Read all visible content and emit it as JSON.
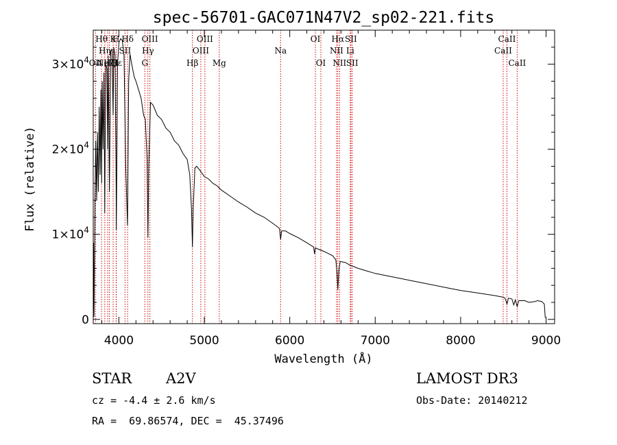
{
  "chart_data": {
    "type": "line",
    "title": "spec-56701-GAC071N47V2_sp02-221.fits",
    "xlabel": "Wavelength (Å)",
    "ylabel": "Flux (relative)",
    "xlim": [
      3700,
      9100
    ],
    "ylim": [
      -500,
      34000
    ],
    "x_ticks": [
      4000,
      5000,
      6000,
      7000,
      8000,
      9000
    ],
    "x_tick_labels": [
      "4000",
      "5000",
      "6000",
      "7000",
      "8000",
      "9000"
    ],
    "y_ticks": [
      0,
      10000,
      20000,
      30000
    ],
    "y_tick_labels": [
      {
        "mantissa": "0",
        "exp": ""
      },
      {
        "mantissa": "1×10",
        "exp": "4"
      },
      {
        "mantissa": "2×10",
        "exp": "4"
      },
      {
        "mantissa": "3×10",
        "exp": "4"
      }
    ],
    "series": [
      {
        "name": "spectrum",
        "points": [
          [
            3700,
            200
          ],
          [
            3705,
            9000
          ],
          [
            3710,
            300
          ],
          [
            3720,
            14000
          ],
          [
            3730,
            21000
          ],
          [
            3740,
            14000
          ],
          [
            3750,
            22000
          ],
          [
            3760,
            15000
          ],
          [
            3770,
            25000
          ],
          [
            3780,
            17000
          ],
          [
            3790,
            27000
          ],
          [
            3798,
            16000
          ],
          [
            3805,
            28000
          ],
          [
            3815,
            20000
          ],
          [
            3825,
            29000
          ],
          [
            3835,
            12500
          ],
          [
            3845,
            30000
          ],
          [
            3860,
            29500
          ],
          [
            3868,
            20000
          ],
          [
            3875,
            31000
          ],
          [
            3889,
            15000
          ],
          [
            3905,
            31500
          ],
          [
            3920,
            31800
          ],
          [
            3933,
            24000
          ],
          [
            3940,
            32000
          ],
          [
            3955,
            31000
          ],
          [
            3968,
            16000
          ],
          [
            3970,
            10500
          ],
          [
            3985,
            30000
          ],
          [
            4000,
            32500
          ],
          [
            4020,
            33000
          ],
          [
            4040,
            32800
          ],
          [
            4060,
            31000
          ],
          [
            4080,
            18000
          ],
          [
            4101,
            11000
          ],
          [
            4115,
            28000
          ],
          [
            4130,
            31200
          ],
          [
            4150,
            30000
          ],
          [
            4180,
            28500
          ],
          [
            4200,
            28000
          ],
          [
            4230,
            27000
          ],
          [
            4260,
            26000
          ],
          [
            4290,
            24000
          ],
          [
            4310,
            23500
          ],
          [
            4330,
            19000
          ],
          [
            4340,
            9600
          ],
          [
            4350,
            18000
          ],
          [
            4370,
            25500
          ],
          [
            4400,
            25200
          ],
          [
            4450,
            24000
          ],
          [
            4500,
            23500
          ],
          [
            4550,
            22500
          ],
          [
            4600,
            22000
          ],
          [
            4650,
            21000
          ],
          [
            4700,
            20500
          ],
          [
            4750,
            19500
          ],
          [
            4800,
            18800
          ],
          [
            4830,
            17000
          ],
          [
            4850,
            13000
          ],
          [
            4861,
            8500
          ],
          [
            4870,
            13000
          ],
          [
            4890,
            17800
          ],
          [
            4910,
            18000
          ],
          [
            4950,
            17500
          ],
          [
            5000,
            16800
          ],
          [
            5050,
            16500
          ],
          [
            5100,
            16000
          ],
          [
            5150,
            15700
          ],
          [
            5200,
            15200
          ],
          [
            5300,
            14500
          ],
          [
            5400,
            13800
          ],
          [
            5500,
            13200
          ],
          [
            5600,
            12500
          ],
          [
            5700,
            12000
          ],
          [
            5800,
            11300
          ],
          [
            5880,
            10700
          ],
          [
            5893,
            9400
          ],
          [
            5905,
            10400
          ],
          [
            5950,
            10400
          ],
          [
            6000,
            10100
          ],
          [
            6100,
            9600
          ],
          [
            6200,
            9000
          ],
          [
            6280,
            8500
          ],
          [
            6290,
            7700
          ],
          [
            6300,
            8400
          ],
          [
            6400,
            8000
          ],
          [
            6500,
            7500
          ],
          [
            6540,
            7000
          ],
          [
            6555,
            5200
          ],
          [
            6563,
            3500
          ],
          [
            6575,
            5800
          ],
          [
            6590,
            6800
          ],
          [
            6650,
            6700
          ],
          [
            6700,
            6400
          ],
          [
            6800,
            6000
          ],
          [
            6900,
            5700
          ],
          [
            7000,
            5400
          ],
          [
            7200,
            5000
          ],
          [
            7400,
            4600
          ],
          [
            7600,
            4200
          ],
          [
            7800,
            3800
          ],
          [
            8000,
            3400
          ],
          [
            8200,
            3100
          ],
          [
            8400,
            2800
          ],
          [
            8500,
            2600
          ],
          [
            8520,
            2500
          ],
          [
            8542,
            1800
          ],
          [
            8560,
            2500
          ],
          [
            8600,
            2400
          ],
          [
            8622,
            1700
          ],
          [
            8640,
            2300
          ],
          [
            8662,
            1500
          ],
          [
            8680,
            2200
          ],
          [
            8750,
            2200
          ],
          [
            8800,
            2000
          ],
          [
            8870,
            2100
          ],
          [
            8900,
            2200
          ],
          [
            8950,
            2100
          ],
          [
            8980,
            1800
          ],
          [
            8990,
            200
          ]
        ]
      }
    ],
    "line_markers": [
      {
        "x": 3727,
        "label": "OII",
        "row": 2
      },
      {
        "x": 3797,
        "label": "Hθ",
        "row": 0
      },
      {
        "x": 3835,
        "label": "Hη",
        "row": 1
      },
      {
        "x": 3869,
        "label": "NeIII",
        "row": 2
      },
      {
        "x": 3889,
        "label": "Hζ",
        "row": 2
      },
      {
        "x": 3933,
        "label": "K",
        "row": 0
      },
      {
        "x": 3968,
        "label": "H",
        "row": 0
      },
      {
        "x": 3970,
        "label": "Hε",
        "row": 2
      },
      {
        "x": 4072,
        "label": "SII",
        "row": 1
      },
      {
        "x": 4102,
        "label": "Hδ",
        "row": 0
      },
      {
        "x": 4304,
        "label": "G",
        "row": 2
      },
      {
        "x": 4340,
        "label": "Hγ",
        "row": 1
      },
      {
        "x": 4363,
        "label": "OIII",
        "row": 0
      },
      {
        "x": 4861,
        "label": "Hβ",
        "row": 2
      },
      {
        "x": 4959,
        "label": "OIII",
        "row": 1
      },
      {
        "x": 5007,
        "label": "OIII",
        "row": 0
      },
      {
        "x": 5175,
        "label": "Mg",
        "row": 2
      },
      {
        "x": 5893,
        "label": "Na",
        "row": 1
      },
      {
        "x": 6300,
        "label": "OI",
        "row": 0
      },
      {
        "x": 6364,
        "label": "OI",
        "row": 2
      },
      {
        "x": 6548,
        "label": "NII",
        "row": 1
      },
      {
        "x": 6563,
        "label": "Hα",
        "row": 0
      },
      {
        "x": 6583,
        "label": "NII",
        "row": 2
      },
      {
        "x": 6708,
        "label": "Li",
        "row": 1
      },
      {
        "x": 6716,
        "label": "SII",
        "row": 0
      },
      {
        "x": 6731,
        "label": "SII",
        "row": 2
      },
      {
        "x": 8498,
        "label": "CaII",
        "row": 1
      },
      {
        "x": 8542,
        "label": "CaII",
        "row": 0
      },
      {
        "x": 8662,
        "label": "CaII",
        "row": 2
      }
    ],
    "marker_color": "#cc0000",
    "line_color": "#000000"
  },
  "info": {
    "object_class": "STAR",
    "subclass": "A2V",
    "survey": "LAMOST DR3",
    "cz": "cz = -4.4 ± 2.6 km/s",
    "obs_date": "Obs-Date: 20140212",
    "coords": "RA =  69.86574, DEC =  45.37496"
  }
}
